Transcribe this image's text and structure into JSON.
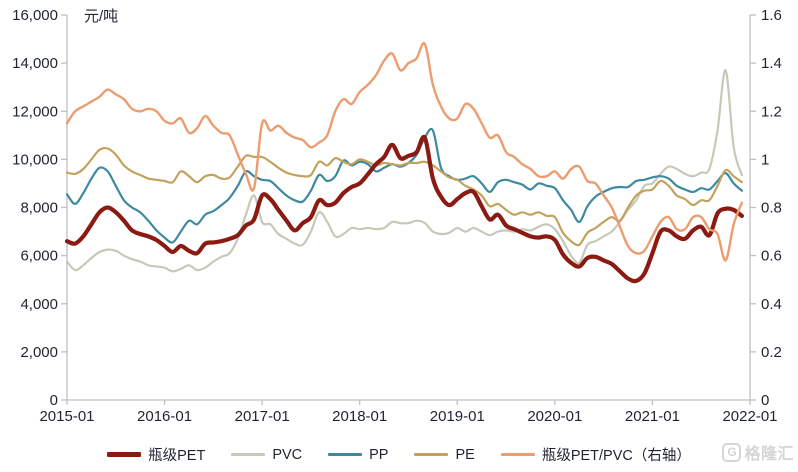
{
  "watermark": {
    "logo_text": "格隆汇"
  },
  "style": {
    "axis_line_color": "#bfbfbf",
    "axis_text_color": "#1f2430",
    "background": "#ffffff"
  },
  "chart_data": {
    "type": "line",
    "title": "",
    "grid": false,
    "legend_position": "bottom",
    "left_axis": {
      "unit": "元/吨",
      "min": 0,
      "max": 16000,
      "step": 2000
    },
    "right_axis": {
      "min": 0,
      "max": 1.6,
      "step": 0.2
    },
    "x_axis": {
      "start": "2015-01",
      "end": "2021-12",
      "frequency": "monthly",
      "points": 84,
      "tick_labels": [
        "2015-01",
        "2016-01",
        "2017-01",
        "2018-01",
        "2019-01",
        "2020-01",
        "2021-01",
        "2022-01"
      ],
      "months_per_tick": 12
    },
    "series": [
      {
        "id": "pvc",
        "name": "PVC",
        "axis": "left",
        "color": "#c7c9b8",
        "width": 2.2,
        "values": [
          5750,
          5400,
          5600,
          5900,
          6150,
          6250,
          6200,
          6000,
          5850,
          5750,
          5600,
          5550,
          5500,
          5350,
          5450,
          5600,
          5400,
          5500,
          5750,
          5950,
          6100,
          6700,
          7700,
          8500,
          7400,
          7300,
          6900,
          6700,
          6500,
          6450,
          7000,
          7800,
          7400,
          6800,
          6900,
          7150,
          7100,
          7150,
          7100,
          7150,
          7400,
          7350,
          7350,
          7450,
          7350,
          7000,
          6900,
          6950,
          7150,
          7000,
          7150,
          7000,
          6850,
          7000,
          7050,
          7000,
          7100,
          7050,
          7200,
          7300,
          7100,
          6600,
          6000,
          5700,
          6450,
          6600,
          6800,
          7000,
          7400,
          7900,
          8300,
          8900,
          9000,
          9400,
          9700,
          9600,
          9400,
          9300,
          9450,
          9600,
          11200,
          13700,
          10500,
          9350
        ]
      },
      {
        "id": "pp",
        "name": "PP",
        "axis": "left",
        "color": "#3d8aa0",
        "width": 2.2,
        "values": [
          8550,
          8150,
          8600,
          9200,
          9650,
          9500,
          8900,
          8300,
          8000,
          7800,
          7450,
          7050,
          6750,
          6550,
          7000,
          7450,
          7300,
          7700,
          7850,
          8100,
          8400,
          8900,
          9500,
          9300,
          9150,
          9100,
          8800,
          8500,
          8300,
          8250,
          8700,
          9350,
          9100,
          9300,
          9950,
          9750,
          9900,
          9800,
          9500,
          9650,
          9800,
          9700,
          9850,
          10200,
          10900,
          11200,
          9650,
          9300,
          9150,
          9200,
          9300,
          9000,
          8650,
          9050,
          9150,
          9050,
          8950,
          8750,
          9000,
          8900,
          8800,
          8300,
          7900,
          7400,
          8050,
          8450,
          8650,
          8800,
          8850,
          8850,
          9100,
          9150,
          9250,
          9300,
          9200,
          8900,
          8750,
          8650,
          8800,
          8750,
          9100,
          9430,
          9000,
          8700
        ]
      },
      {
        "id": "pe",
        "name": "PE",
        "axis": "left",
        "color": "#c2a25c",
        "width": 2.2,
        "values": [
          9450,
          9400,
          9600,
          10000,
          10400,
          10450,
          10200,
          9750,
          9500,
          9350,
          9200,
          9150,
          9100,
          9050,
          9500,
          9300,
          9050,
          9300,
          9350,
          9200,
          9250,
          9700,
          10150,
          10100,
          10100,
          9900,
          9650,
          9450,
          9350,
          9300,
          9350,
          9900,
          9750,
          10050,
          9900,
          9800,
          10000,
          9900,
          9750,
          9850,
          9800,
          9750,
          9850,
          9850,
          9900,
          9750,
          9500,
          9250,
          9150,
          8900,
          8750,
          8500,
          8050,
          8150,
          7900,
          7700,
          7800,
          7700,
          7800,
          7650,
          7600,
          6950,
          6600,
          6450,
          6950,
          7150,
          7400,
          7600,
          7450,
          8000,
          8500,
          8700,
          8750,
          9100,
          8900,
          8500,
          8350,
          8100,
          8300,
          8300,
          8900,
          9550,
          9300,
          9050
        ]
      },
      {
        "id": "bottle-pet",
        "name": "瓶级PET",
        "axis": "left",
        "color": "#8a1a12",
        "width": 4.2,
        "values": [
          6600,
          6500,
          6800,
          7300,
          7800,
          8000,
          7800,
          7450,
          7050,
          6900,
          6800,
          6650,
          6400,
          6150,
          6400,
          6200,
          6100,
          6500,
          6550,
          6600,
          6700,
          6850,
          7250,
          7500,
          8500,
          8350,
          7900,
          7450,
          7050,
          7350,
          7600,
          8300,
          8100,
          8200,
          8600,
          8850,
          9000,
          9380,
          9800,
          10100,
          10600,
          10050,
          10150,
          10300,
          10900,
          9200,
          8450,
          8100,
          8350,
          8600,
          8650,
          8050,
          7500,
          7700,
          7250,
          7100,
          6950,
          6800,
          6750,
          6800,
          6650,
          6050,
          5700,
          5550,
          5900,
          5950,
          5800,
          5650,
          5350,
          5050,
          4950,
          5250,
          6100,
          7000,
          7050,
          6800,
          6700,
          7050,
          7200,
          6850,
          7750,
          7950,
          7900,
          7650
        ]
      },
      {
        "id": "pet-pvc-ratio",
        "name": "瓶级PET/PVC（右轴）",
        "axis": "right",
        "color": "#ec9c6e",
        "width": 2.4,
        "values": [
          1.15,
          1.2,
          1.22,
          1.24,
          1.26,
          1.29,
          1.27,
          1.25,
          1.21,
          1.2,
          1.21,
          1.2,
          1.16,
          1.15,
          1.17,
          1.11,
          1.13,
          1.18,
          1.14,
          1.11,
          1.1,
          1.02,
          0.94,
          0.88,
          1.15,
          1.12,
          1.14,
          1.11,
          1.09,
          1.08,
          1.05,
          1.07,
          1.1,
          1.2,
          1.25,
          1.23,
          1.28,
          1.31,
          1.35,
          1.41,
          1.44,
          1.37,
          1.4,
          1.42,
          1.48,
          1.31,
          1.22,
          1.17,
          1.17,
          1.23,
          1.21,
          1.15,
          1.09,
          1.1,
          1.03,
          1.01,
          0.98,
          0.96,
          0.93,
          0.93,
          0.95,
          0.92,
          0.96,
          0.97,
          0.91,
          0.9,
          0.85,
          0.8,
          0.72,
          0.64,
          0.61,
          0.62,
          0.68,
          0.74,
          0.76,
          0.71,
          0.71,
          0.76,
          0.76,
          0.71,
          0.69,
          0.58,
          0.73,
          0.82
        ]
      }
    ],
    "legend_order": [
      "bottle-pet",
      "pvc",
      "pp",
      "pe",
      "pet-pvc-ratio"
    ]
  }
}
